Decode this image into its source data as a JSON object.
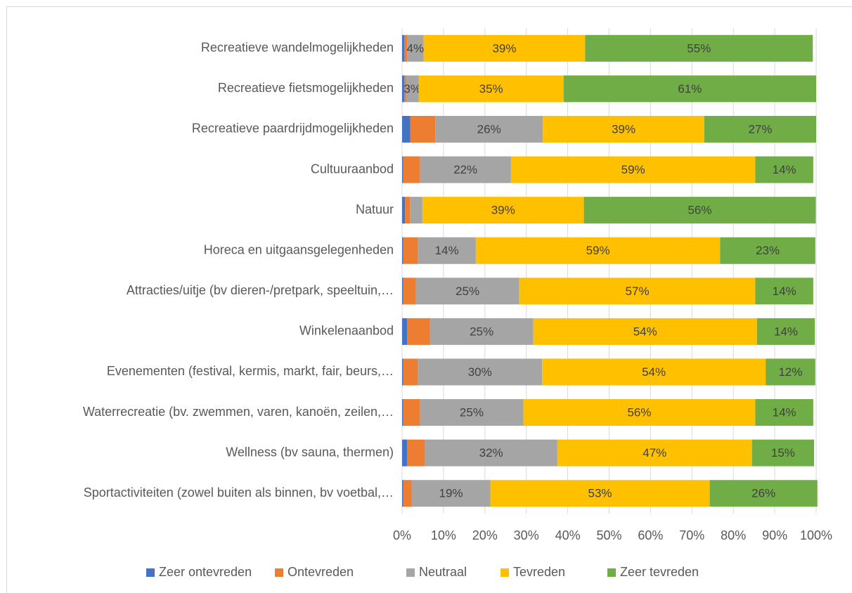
{
  "chart_data": {
    "type": "stacked_barh",
    "categories": [
      "Recreatieve wandelmogelijkheden",
      "Recreatieve fietsmogelijkheden",
      "Recreatieve paardrijdmogelijkheden",
      "Cultuuraanbod",
      "Natuur",
      "Horeca en uitgaansgelegenheden",
      "Attracties/uitje (bv dieren-/pretpark, speeltuin,…",
      "Winkelenaanbod",
      "Evenementen (festival, kermis, markt, fair, beurs,…",
      "Waterrecreatie (bv. zwemmen, varen, kanoën, zeilen,…",
      "Wellness (bv sauna, thermen)",
      "Sportactiviteiten (zowel buiten als binnen, bv voetbal,…"
    ],
    "series": [
      {
        "name": "Zeer ontevreden",
        "color": "#4472c4",
        "values": [
          0.5,
          0.5,
          2,
          0.3,
          0.7,
          0.3,
          0.3,
          1.2,
          0.3,
          0.3,
          1.2,
          0.3
        ],
        "value_labels": [
          null,
          null,
          null,
          null,
          null,
          null,
          null,
          null,
          null,
          null,
          null,
          null
        ]
      },
      {
        "name": "Ontevreden",
        "color": "#ed7d31",
        "values": [
          0.7,
          0.5,
          6,
          4,
          1.2,
          3.5,
          3,
          5.5,
          3.5,
          4,
          4.3,
          2
        ],
        "value_labels": [
          null,
          null,
          null,
          null,
          null,
          null,
          null,
          null,
          null,
          null,
          null,
          null
        ]
      },
      {
        "name": "Neutraal",
        "color": "#a5a5a5",
        "values": [
          4,
          3,
          26,
          22,
          3,
          14,
          25,
          25,
          30,
          25,
          32,
          19
        ],
        "value_labels": [
          "4%",
          "3%",
          "26%",
          "22%",
          null,
          "14%",
          "25%",
          "25%",
          "30%",
          "25%",
          "32%",
          "19%"
        ]
      },
      {
        "name": "Tevreden",
        "color": "#ffc000",
        "values": [
          39,
          35,
          39,
          59,
          39,
          59,
          57,
          54,
          54,
          56,
          47,
          53
        ],
        "value_labels": [
          "39%",
          "35%",
          "39%",
          "59%",
          "39%",
          "59%",
          "57%",
          "54%",
          "54%",
          "56%",
          "47%",
          "53%"
        ]
      },
      {
        "name": "Zeer tevreden",
        "color": "#70ad47",
        "values": [
          55,
          61,
          27,
          14,
          56,
          23,
          14,
          14,
          12,
          14,
          15,
          26
        ],
        "value_labels": [
          "55%",
          "61%",
          "27%",
          "14%",
          "56%",
          "23%",
          "14%",
          "14%",
          "12%",
          "14%",
          "15%",
          "26%"
        ]
      }
    ],
    "xlim": [
      0,
      100
    ],
    "xticks": [
      {
        "value": 0,
        "label": "0%"
      },
      {
        "value": 10,
        "label": "10%"
      },
      {
        "value": 20,
        "label": "20%"
      },
      {
        "value": 30,
        "label": "30%"
      },
      {
        "value": 40,
        "label": "40%"
      },
      {
        "value": 50,
        "label": "50%"
      },
      {
        "value": 60,
        "label": "60%"
      },
      {
        "value": 70,
        "label": "70%"
      },
      {
        "value": 80,
        "label": "80%"
      },
      {
        "value": 90,
        "label": "90%"
      },
      {
        "value": 100,
        "label": "100%"
      }
    ],
    "grid": true,
    "legend": "bottom"
  }
}
